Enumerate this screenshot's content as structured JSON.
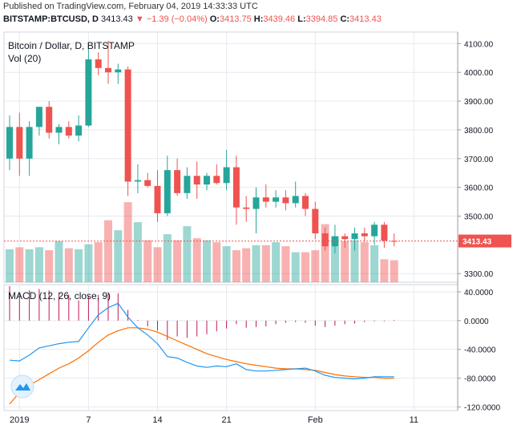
{
  "header": {
    "published": "Published on TradingView.com, February 04, 2019 14:33:33 UTC",
    "symbol": "BITSTAMP:BTCUSD, D",
    "last": "3413.43",
    "change": "−1.39 (−0.04%)",
    "o_label": "O:",
    "o": "3413.75",
    "h_label": "H:",
    "h": "3439.46",
    "l_label": "L:",
    "l": "3394.85",
    "c_label": "C:",
    "c": "3413.43"
  },
  "colors": {
    "up": "#26a69a",
    "down": "#ef5350",
    "macd_line": "#2196f3",
    "signal_line": "#ff6d00",
    "hist": "#c2185b",
    "grid": "#e6e9ef"
  },
  "chart_data": [
    {
      "type": "candlestick",
      "title": "Bitcoin / Dollar, D, BITSTAMP",
      "indicator_label": "Vol (20)",
      "ylim": [
        3270,
        4140
      ],
      "y_ticks": [
        "4100.00",
        "4000.00",
        "3900.00",
        "3800.00",
        "3700.00",
        "3600.00",
        "3500.00",
        "3300.00"
      ],
      "y_tick_values": [
        4100,
        4000,
        3900,
        3800,
        3700,
        3600,
        3500,
        3300
      ],
      "last_price_label": "3413.43",
      "last_price": 3413.43,
      "x_tick_labels": [
        "2019",
        "7",
        "14",
        "21",
        "Feb",
        "11"
      ],
      "x_tick_index": [
        1,
        8,
        15,
        22,
        31,
        41
      ],
      "candles": [
        {
          "o": 3700,
          "h": 3850,
          "l": 3660,
          "c": 3810
        },
        {
          "o": 3810,
          "h": 3860,
          "l": 3640,
          "c": 3700
        },
        {
          "o": 3700,
          "h": 3830,
          "l": 3640,
          "c": 3810
        },
        {
          "o": 3810,
          "h": 3880,
          "l": 3780,
          "c": 3880
        },
        {
          "o": 3880,
          "h": 3900,
          "l": 3770,
          "c": 3790
        },
        {
          "o": 3790,
          "h": 3820,
          "l": 3750,
          "c": 3810
        },
        {
          "o": 3810,
          "h": 3830,
          "l": 3770,
          "c": 3780
        },
        {
          "o": 3780,
          "h": 3850,
          "l": 3760,
          "c": 3815
        },
        {
          "o": 3815,
          "h": 4100,
          "l": 3810,
          "c": 4045
        },
        {
          "o": 4045,
          "h": 4070,
          "l": 3990,
          "c": 4015
        },
        {
          "o": 4015,
          "h": 4110,
          "l": 3960,
          "c": 4000
        },
        {
          "o": 4000,
          "h": 4030,
          "l": 3960,
          "c": 4010
        },
        {
          "o": 4010,
          "h": 4020,
          "l": 3570,
          "c": 3620
        },
        {
          "o": 3620,
          "h": 3680,
          "l": 3580,
          "c": 3625
        },
        {
          "o": 3625,
          "h": 3650,
          "l": 3600,
          "c": 3605
        },
        {
          "o": 3605,
          "h": 3660,
          "l": 3480,
          "c": 3510
        },
        {
          "o": 3510,
          "h": 3710,
          "l": 3500,
          "c": 3660
        },
        {
          "o": 3660,
          "h": 3700,
          "l": 3570,
          "c": 3580
        },
        {
          "o": 3580,
          "h": 3670,
          "l": 3560,
          "c": 3640
        },
        {
          "o": 3640,
          "h": 3690,
          "l": 3560,
          "c": 3610
        },
        {
          "o": 3610,
          "h": 3650,
          "l": 3590,
          "c": 3640
        },
        {
          "o": 3640,
          "h": 3680,
          "l": 3610,
          "c": 3615
        },
        {
          "o": 3615,
          "h": 3730,
          "l": 3590,
          "c": 3670
        },
        {
          "o": 3670,
          "h": 3710,
          "l": 3470,
          "c": 3530
        },
        {
          "o": 3530,
          "h": 3570,
          "l": 3480,
          "c": 3525
        },
        {
          "o": 3525,
          "h": 3600,
          "l": 3440,
          "c": 3565
        },
        {
          "o": 3565,
          "h": 3610,
          "l": 3530,
          "c": 3550
        },
        {
          "o": 3550,
          "h": 3590,
          "l": 3530,
          "c": 3565
        },
        {
          "o": 3565,
          "h": 3590,
          "l": 3520,
          "c": 3545
        },
        {
          "o": 3545,
          "h": 3620,
          "l": 3530,
          "c": 3570
        },
        {
          "o": 3570,
          "h": 3580,
          "l": 3500,
          "c": 3525
        },
        {
          "o": 3525,
          "h": 3550,
          "l": 3420,
          "c": 3440
        },
        {
          "o": 3440,
          "h": 3460,
          "l": 3380,
          "c": 3395
        },
        {
          "o": 3395,
          "h": 3470,
          "l": 3370,
          "c": 3430
        },
        {
          "o": 3430,
          "h": 3440,
          "l": 3390,
          "c": 3420
        },
        {
          "o": 3420,
          "h": 3460,
          "l": 3380,
          "c": 3440
        },
        {
          "o": 3440,
          "h": 3460,
          "l": 3410,
          "c": 3430
        },
        {
          "o": 3430,
          "h": 3480,
          "l": 3400,
          "c": 3470
        },
        {
          "o": 3470,
          "h": 3480,
          "l": 3390,
          "c": 3415
        },
        {
          "o": 3413.75,
          "h": 3439.46,
          "l": 3394.85,
          "c": 3413.43
        }
      ],
      "volume": [
        0.33,
        0.35,
        0.33,
        0.35,
        0.32,
        0.41,
        0.34,
        0.33,
        0.38,
        0.4,
        0.62,
        0.52,
        0.8,
        0.6,
        0.42,
        0.35,
        0.48,
        0.42,
        0.56,
        0.44,
        0.42,
        0.4,
        0.36,
        0.32,
        0.34,
        0.37,
        0.37,
        0.4,
        0.36,
        0.3,
        0.3,
        0.32,
        0.58,
        0.46,
        0.41,
        0.42,
        0.4,
        0.37,
        0.23,
        0.22
      ]
    },
    {
      "type": "line",
      "title": "MACD (12, 26, close, 9)",
      "ylim": [
        -125,
        50
      ],
      "y_ticks": [
        "40.0000",
        "0.0000",
        "-40.0000",
        "-80.0000",
        "-120.0000"
      ],
      "y_tick_values": [
        40,
        0,
        -40,
        -80,
        -120
      ],
      "series": [
        {
          "name": "MACD",
          "values": [
            -55,
            -56,
            -48,
            -38,
            -35,
            -32,
            -30,
            -29,
            -10,
            8,
            18,
            24,
            5,
            -10,
            -20,
            -32,
            -50,
            -52,
            -58,
            -63,
            -65,
            -63,
            -64,
            -60,
            -68,
            -70,
            -70,
            -69,
            -68,
            -67,
            -66,
            -70,
            -76,
            -79,
            -80,
            -81,
            -80,
            -78,
            -78,
            -78
          ]
        },
        {
          "name": "Signal",
          "values": [
            -116,
            -100,
            -90,
            -82,
            -74,
            -66,
            -60,
            -52,
            -42,
            -30,
            -20,
            -14,
            -10,
            -10,
            -12,
            -16,
            -22,
            -28,
            -34,
            -40,
            -46,
            -50,
            -54,
            -57,
            -60,
            -62,
            -64,
            -66,
            -67,
            -67,
            -68,
            -69,
            -72,
            -75,
            -77,
            -78,
            -79,
            -79,
            -80,
            -80
          ]
        },
        {
          "name": "Histogram",
          "values": [
            48,
            38,
            42,
            44,
            42,
            39,
            36,
            28,
            34,
            36,
            38,
            38,
            15,
            1,
            -8,
            -14,
            -27,
            -22,
            -24,
            -22,
            -19,
            -15,
            -11,
            -5,
            -10,
            -9,
            -8,
            -5,
            -3,
            -2,
            -3,
            -7,
            -9,
            -7,
            -5,
            -4,
            -2,
            -1,
            -1,
            1
          ]
        }
      ]
    }
  ]
}
